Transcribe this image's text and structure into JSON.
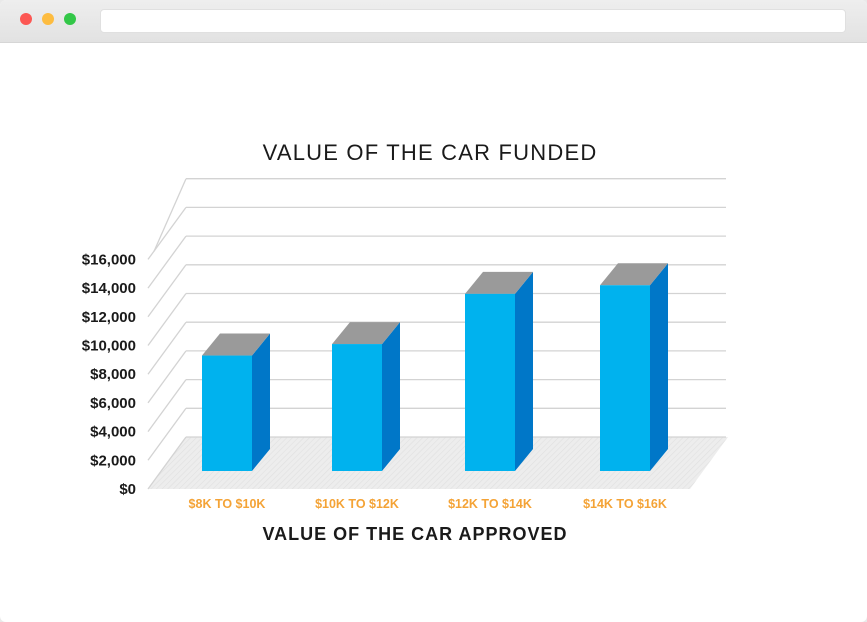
{
  "browser": {
    "buttons": [
      "close",
      "minimize",
      "maximize"
    ],
    "address": ""
  },
  "chart_data": {
    "type": "bar",
    "title": "VALUE OF THE CAR FUNDED",
    "xlabel": "VALUE OF THE CAR APPROVED",
    "ylabel": "",
    "categories": [
      "$8K TO $10K",
      "$10K TO $12K",
      "$12K TO $14K",
      "$14K TO $16K"
    ],
    "values": [
      9300,
      10100,
      13600,
      14200
    ],
    "ylim": [
      0,
      16000
    ],
    "yticks": [
      0,
      2000,
      4000,
      6000,
      8000,
      10000,
      12000,
      14000,
      16000
    ],
    "ytick_labels": [
      "$0",
      "$2,000",
      "$4,000",
      "$6,000",
      "$8,000",
      "$10,000",
      "$12,000",
      "$14,000",
      "$16,000"
    ],
    "grid": true,
    "legend": "none",
    "style": "3d",
    "colors": {
      "bar_front": "#00b2ee",
      "bar_side": "#0077c8",
      "bar_top": "#9a9a9a",
      "category_label": "#f4a336",
      "text": "#1a1a1a",
      "grid": "#d3d3d3",
      "floor": "#ebebeb"
    }
  }
}
